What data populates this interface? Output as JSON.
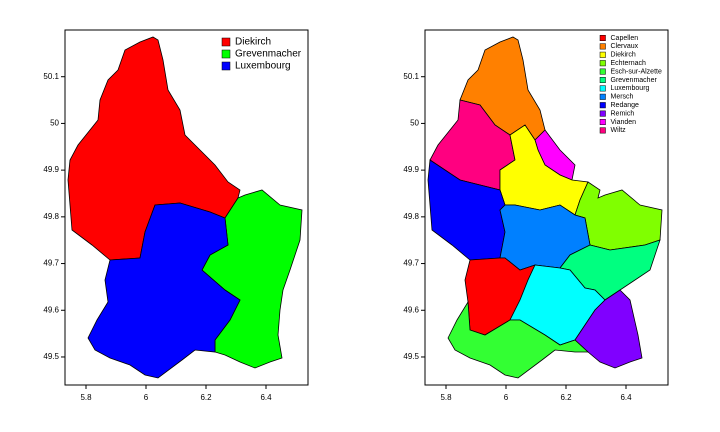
{
  "chart_data": [
    {
      "type": "map",
      "xlim": [
        5.73,
        6.54
      ],
      "ylim": [
        49.44,
        50.2
      ],
      "xticks": [
        5.8,
        6,
        6.2,
        6.4
      ],
      "yticks": [
        49.5,
        49.6,
        49.7,
        49.8,
        49.9,
        50,
        50.1
      ],
      "legend": "top-right",
      "series": [
        {
          "name": "Diekirch",
          "color": "#ff0000"
        },
        {
          "name": "Grevenmacher",
          "color": "#00ff00"
        },
        {
          "name": "Luxembourg",
          "color": "#0000ff"
        }
      ]
    },
    {
      "type": "map",
      "xlim": [
        5.73,
        6.54
      ],
      "ylim": [
        49.44,
        50.2
      ],
      "xticks": [
        5.8,
        6,
        6.2,
        6.4
      ],
      "yticks": [
        49.5,
        49.6,
        49.7,
        49.8,
        49.9,
        50,
        50.1
      ],
      "legend": "top-right",
      "series": [
        {
          "name": "Capellen",
          "color": "#ff0000"
        },
        {
          "name": "Clervaux",
          "color": "#ff8000"
        },
        {
          "name": "Diekirch",
          "color": "#ffff00"
        },
        {
          "name": "Echternach",
          "color": "#80ff00"
        },
        {
          "name": "Esch-sur-Alzette",
          "color": "#33ff33"
        },
        {
          "name": "Grevenmacher",
          "color": "#00ff80"
        },
        {
          "name": "Luxembourg",
          "color": "#00ffff"
        },
        {
          "name": "Mersch",
          "color": "#0080ff"
        },
        {
          "name": "Redange",
          "color": "#0000ff"
        },
        {
          "name": "Remich",
          "color": "#8000ff"
        },
        {
          "name": "Vianden",
          "color": "#ff00ff"
        },
        {
          "name": "Wiltz",
          "color": "#ff0080"
        }
      ]
    }
  ]
}
